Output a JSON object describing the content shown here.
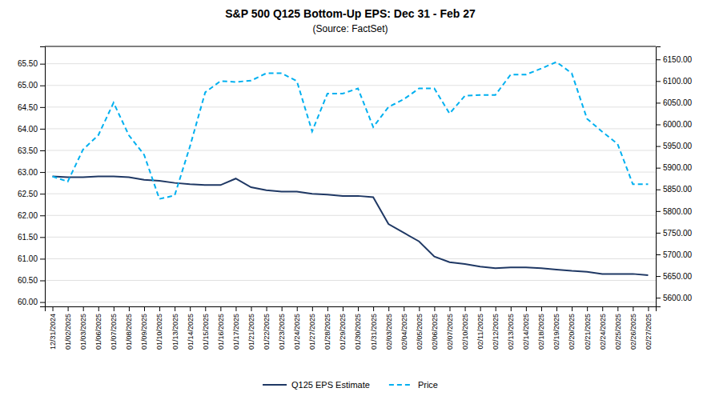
{
  "chart_data": {
    "type": "line",
    "title": "S&P 500 Q125 Bottom-Up EPS: Dec 31 - Feb 27",
    "subtitle": "(Source: FactSet)",
    "categories": [
      "12/31/2024",
      "01/02/2025",
      "01/03/2025",
      "01/06/2025",
      "01/07/2025",
      "01/08/2025",
      "01/09/2025",
      "01/10/2025",
      "01/13/2025",
      "01/14/2025",
      "01/15/2025",
      "01/16/2025",
      "01/17/2025",
      "01/21/2025",
      "01/22/2025",
      "01/23/2025",
      "01/24/2025",
      "01/27/2025",
      "01/28/2025",
      "01/29/2025",
      "01/30/2025",
      "01/31/2025",
      "02/03/2025",
      "02/04/2025",
      "02/05/2025",
      "02/06/2025",
      "02/07/2025",
      "02/10/2025",
      "02/11/2025",
      "02/12/2025",
      "02/13/2025",
      "02/14/2025",
      "02/18/2025",
      "02/19/2025",
      "02/20/2025",
      "02/21/2025",
      "02/24/2025",
      "02/25/2025",
      "02/26/2025",
      "02/27/2025"
    ],
    "series": [
      {
        "name": "Q125 EPS Estimate",
        "color": "#1f3864",
        "line_style": "solid",
        "values": [
          62.9,
          62.88,
          62.88,
          62.9,
          62.9,
          62.88,
          62.82,
          62.8,
          62.75,
          62.72,
          62.7,
          62.7,
          62.85,
          62.65,
          62.58,
          62.55,
          62.55,
          62.5,
          62.48,
          62.45,
          62.45,
          62.42,
          61.8,
          61.6,
          61.4,
          61.05,
          60.92,
          60.88,
          60.82,
          60.78,
          60.8,
          60.8,
          60.78,
          60.75,
          60.72,
          60.7,
          60.65,
          60.65,
          60.65,
          60.62
        ]
      },
      {
        "name": "Price",
        "color": "#00b0f0",
        "line_style": "dashed",
        "axis": "y2",
        "values": [
          5880.0,
          5868.0,
          5942.0,
          5975.0,
          6050.0,
          5975.0,
          5930.0,
          5828.0,
          5836.0,
          5949.0,
          6074.0,
          6100.0,
          6098.0,
          6101.0,
          6118.0,
          6118.0,
          6100.0,
          5984.0,
          6071.0,
          6071.0,
          6083.0,
          5994.0,
          6040.0,
          6058.0,
          6083.0,
          6083.0,
          6025.0,
          6066.0,
          6068.0,
          6068.0,
          6115.0,
          6115.0,
          6129.0,
          6144.0,
          6118.0,
          6013.0,
          5983.0,
          5955.0,
          5862.0,
          5862.0
        ]
      }
    ],
    "ylim": [
      59.9,
      65.9
    ],
    "yticks": [
      {
        "value": 60,
        "label": "60.00"
      },
      {
        "value": 60.5,
        "label": "60.50"
      },
      {
        "value": 61,
        "label": "61.00"
      },
      {
        "value": 61.5,
        "label": "61.50"
      },
      {
        "value": 62,
        "label": "62.00"
      },
      {
        "value": 62.5,
        "label": "62.50"
      },
      {
        "value": 63,
        "label": "63.00"
      },
      {
        "value": 63.5,
        "label": "63.50"
      },
      {
        "value": 64,
        "label": "64.00"
      },
      {
        "value": 64.5,
        "label": "64.50"
      },
      {
        "value": 65,
        "label": "65.00"
      },
      {
        "value": 65.5,
        "label": "65.50"
      }
    ],
    "y2lim": [
      5580.0,
      6180.0
    ],
    "y2ticks": [
      {
        "value": 5600,
        "label": "5600.00"
      },
      {
        "value": 5650,
        "label": "5650.00"
      },
      {
        "value": 5700,
        "label": "5700.00"
      },
      {
        "value": 5750,
        "label": "5750.00"
      },
      {
        "value": 5800,
        "label": "5800.00"
      },
      {
        "value": 5850,
        "label": "5850.00"
      },
      {
        "value": 5900,
        "label": "5900.00"
      },
      {
        "value": 5950,
        "label": "5950.00"
      },
      {
        "value": 6000,
        "label": "6000.00"
      },
      {
        "value": 6050,
        "label": "6050.00"
      },
      {
        "value": 6100,
        "label": "6100.00"
      },
      {
        "value": 6150,
        "label": "6150.00"
      }
    ],
    "grid": true,
    "legend": "bottom"
  }
}
